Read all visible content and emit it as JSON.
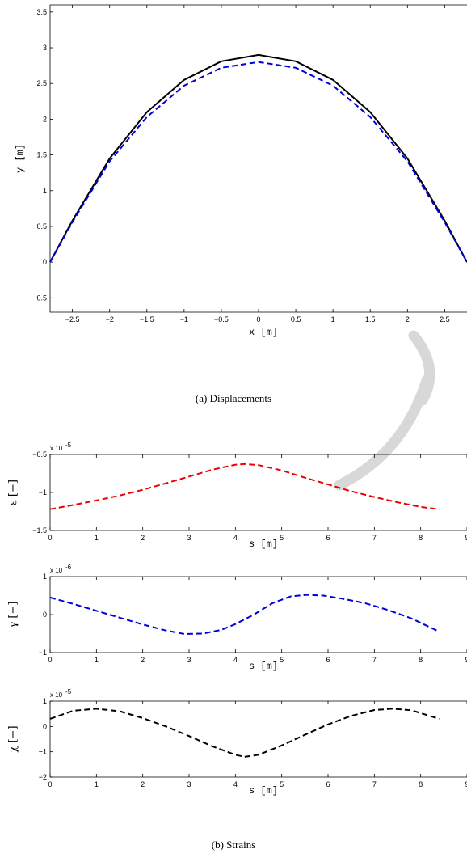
{
  "captions": {
    "a": "(a) Displacements",
    "b": "(b) Strains"
  },
  "chart_data": [
    {
      "id": "displacements",
      "type": "line",
      "xlabel": "x [m]",
      "ylabel": "y [m]",
      "xlim": [
        -2.8,
        2.8
      ],
      "ylim": [
        -0.7,
        3.6
      ],
      "xticks": [
        -2.5,
        -2,
        -1.5,
        -1,
        -0.5,
        0,
        0.5,
        1,
        1.5,
        2,
        2.5
      ],
      "yticks": [
        -0.5,
        0,
        0.5,
        1,
        1.5,
        2,
        2.5,
        3,
        3.5
      ],
      "grid": false,
      "series": [
        {
          "color": "#000000",
          "dash": "solid",
          "x": [
            -2.8,
            -2.5,
            -2.0,
            -1.5,
            -1.0,
            -0.5,
            0.0,
            0.5,
            1.0,
            1.5,
            2.0,
            2.5,
            2.8
          ],
          "y": [
            0.0,
            0.58,
            1.45,
            2.1,
            2.55,
            2.81,
            2.9,
            2.81,
            2.55,
            2.1,
            1.45,
            0.58,
            0.0
          ]
        },
        {
          "color": "#0000dd",
          "dash": "dashed",
          "x": [
            -2.8,
            -2.5,
            -2.0,
            -1.5,
            -1.0,
            -0.5,
            0.0,
            0.5,
            1.0,
            1.5,
            2.0,
            2.5,
            2.8
          ],
          "y": [
            0.0,
            0.56,
            1.41,
            2.03,
            2.47,
            2.72,
            2.8,
            2.72,
            2.47,
            2.03,
            1.41,
            0.56,
            0.0
          ]
        }
      ]
    },
    {
      "id": "epsilon",
      "type": "line",
      "xlabel": "s [m]",
      "ylabel": "ε [−]",
      "multiplier": "x 10",
      "exponent": "-5",
      "xlim": [
        0,
        9
      ],
      "ylim": [
        -1.5,
        -0.5
      ],
      "xticks": [
        0,
        1,
        2,
        3,
        4,
        5,
        6,
        7,
        8,
        9
      ],
      "yticks": [
        -1.5,
        -1,
        -0.5
      ],
      "ytick_labels": [
        "−1.5",
        "−1",
        "−0.5"
      ],
      "grid": false,
      "series": [
        {
          "color": "#ee0000",
          "dash": "dashed",
          "x": [
            0,
            0.5,
            1,
            1.5,
            2,
            2.5,
            3,
            3.5,
            4,
            4.2,
            4.5,
            5,
            5.5,
            6,
            6.5,
            7,
            7.5,
            8,
            8.4
          ],
          "y": [
            -1.22,
            -1.165,
            -1.105,
            -1.04,
            -0.965,
            -0.88,
            -0.79,
            -0.7,
            -0.635,
            -0.625,
            -0.64,
            -0.71,
            -0.805,
            -0.895,
            -0.985,
            -1.06,
            -1.13,
            -1.19,
            -1.22
          ]
        }
      ]
    },
    {
      "id": "gamma",
      "type": "line",
      "xlabel": "s [m]",
      "ylabel": "γ [−]",
      "multiplier": "x 10",
      "exponent": "-6",
      "xlim": [
        0,
        9
      ],
      "ylim": [
        -1,
        1
      ],
      "xticks": [
        0,
        1,
        2,
        3,
        4,
        5,
        6,
        7,
        8,
        9
      ],
      "yticks": [
        -1,
        0,
        1
      ],
      "ytick_labels": [
        "−1",
        "0",
        "1"
      ],
      "grid": false,
      "series": [
        {
          "color": "#0000dd",
          "dash": "dashed",
          "x": [
            0,
            0.5,
            1,
            1.5,
            2,
            2.5,
            2.9,
            3.3,
            3.7,
            4,
            4.4,
            4.8,
            5.2,
            5.55,
            5.9,
            6.3,
            6.8,
            7.3,
            7.8,
            8.4
          ],
          "y": [
            0.45,
            0.28,
            0.1,
            -0.08,
            -0.26,
            -0.42,
            -0.51,
            -0.5,
            -0.4,
            -0.25,
            0.0,
            0.3,
            0.48,
            0.52,
            0.5,
            0.42,
            0.3,
            0.12,
            -0.1,
            -0.45
          ]
        }
      ]
    },
    {
      "id": "chi",
      "type": "line",
      "xlabel": "s [m]",
      "ylabel": "χ [−]",
      "multiplier": "x 10",
      "exponent": "-5",
      "xlim": [
        0,
        9
      ],
      "ylim": [
        -2,
        1
      ],
      "xticks": [
        0,
        1,
        2,
        3,
        4,
        5,
        6,
        7,
        8,
        9
      ],
      "yticks": [
        -2,
        -1,
        0,
        1
      ],
      "ytick_labels": [
        "−2",
        "−1",
        "0",
        "1"
      ],
      "grid": false,
      "series": [
        {
          "color": "#000000",
          "dash": "dashed",
          "x": [
            0,
            0.5,
            1,
            1.5,
            2,
            2.5,
            3,
            3.5,
            4,
            4.2,
            4.5,
            5,
            5.5,
            6,
            6.5,
            7,
            7.4,
            7.8,
            8.4
          ],
          "y": [
            0.3,
            0.62,
            0.7,
            0.6,
            0.33,
            0.0,
            -0.38,
            -0.78,
            -1.12,
            -1.2,
            -1.12,
            -0.75,
            -0.33,
            0.08,
            0.42,
            0.65,
            0.7,
            0.64,
            0.3
          ]
        }
      ]
    }
  ]
}
